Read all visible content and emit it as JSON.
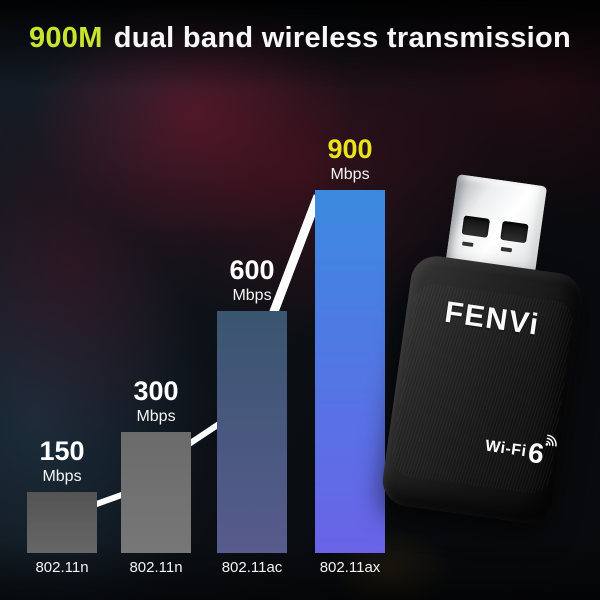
{
  "title": {
    "highlight": "900M",
    "rest": "dual band wireless transmission",
    "highlight_color": "#c9e42f"
  },
  "chart_data": {
    "type": "bar",
    "title": "900M dual band wireless transmission",
    "categories": [
      "802.11n",
      "802.11n",
      "802.11ac",
      "802.11ax"
    ],
    "values": [
      150,
      300,
      600,
      900
    ],
    "unit_label": "Mbps",
    "ylim": [
      0,
      900
    ],
    "grid": false,
    "legend": "none",
    "bar_colors": [
      [
        "#545454",
        "#666666"
      ],
      [
        "#6b6b6b",
        "#777777"
      ],
      [
        "#3a5570",
        "#575b8d"
      ],
      [
        "#3b8ae0",
        "#6a63e8"
      ]
    ],
    "value_label_colors": [
      "#ffffff",
      "#ffffff",
      "#ffffff",
      "#e9e41c"
    ],
    "trend_line_color": "#ffffff"
  },
  "device": {
    "brand": "FENVi",
    "wifi_text": "Wi-Fi",
    "wifi_number": "6",
    "icons": [
      "usb-plug-icon",
      "wifi-signal-icon"
    ]
  },
  "colors": {
    "background": "#0b0e12",
    "title_text": "#f7f7f7",
    "category_text": "#f2f2f2"
  }
}
